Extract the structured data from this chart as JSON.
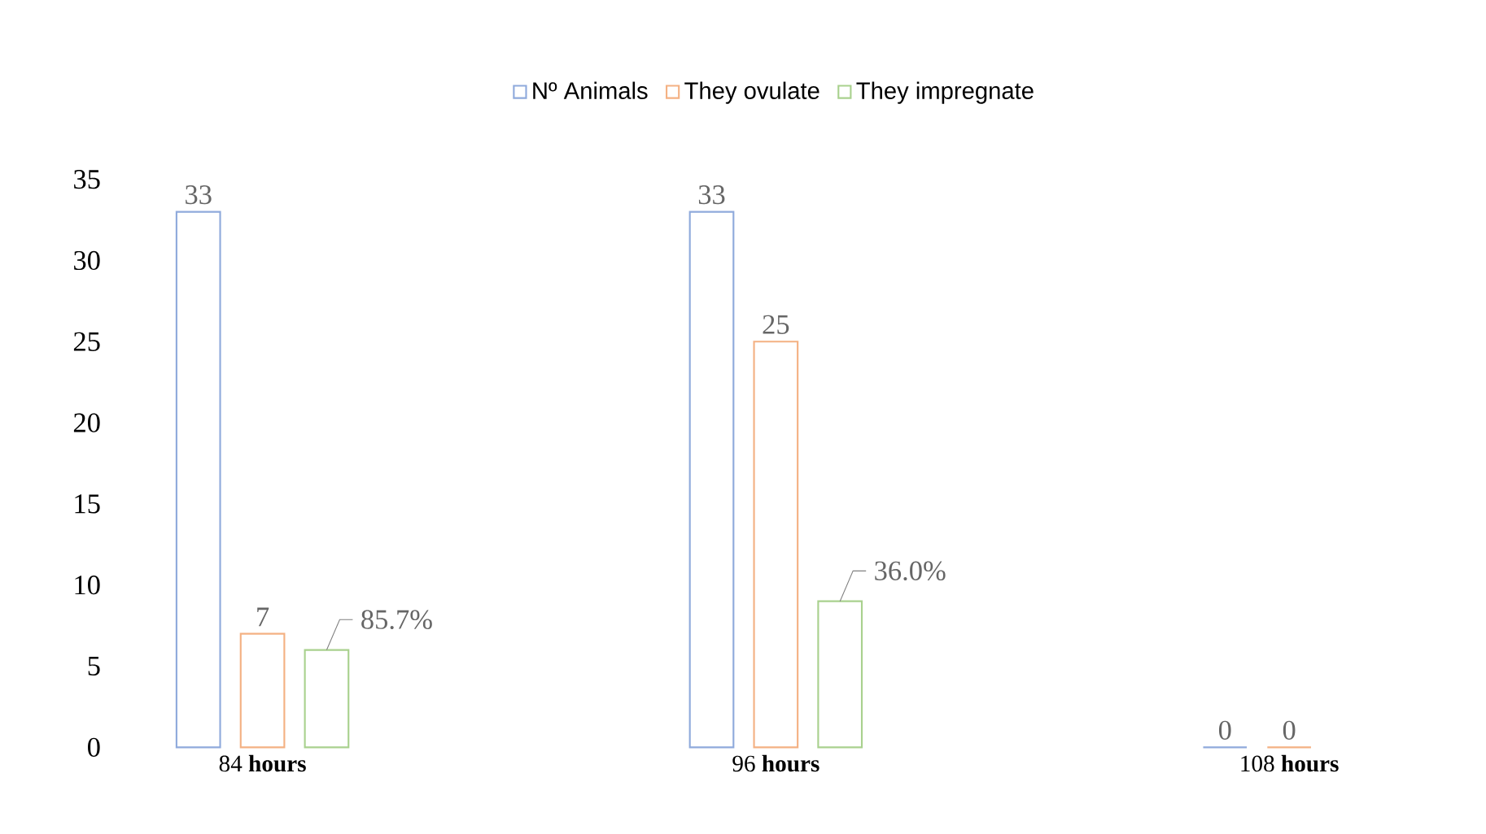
{
  "chart_data": {
    "type": "bar",
    "categories": [
      "84 **hours**",
      "96 **hours**",
      "108 **hours**"
    ],
    "series": [
      {
        "name": "Nº Animals",
        "color": "#8faadc",
        "values": [
          33,
          33,
          0
        ],
        "value_labels": [
          "33",
          "33",
          "0"
        ]
      },
      {
        "name": "They ovulate",
        "color": "#f4b183",
        "values": [
          7,
          25,
          0
        ],
        "value_labels": [
          "7",
          "25",
          "0"
        ]
      },
      {
        "name": "They impregnate",
        "color": "#a9d18e",
        "values": [
          6,
          9,
          null
        ]
      }
    ],
    "annotations": [
      "85.7%",
      "36.0%"
    ],
    "ylim": [
      0,
      35
    ],
    "yticks": [
      0,
      5,
      10,
      15,
      20,
      25,
      30,
      35
    ],
    "grid": false,
    "legend": "top"
  }
}
